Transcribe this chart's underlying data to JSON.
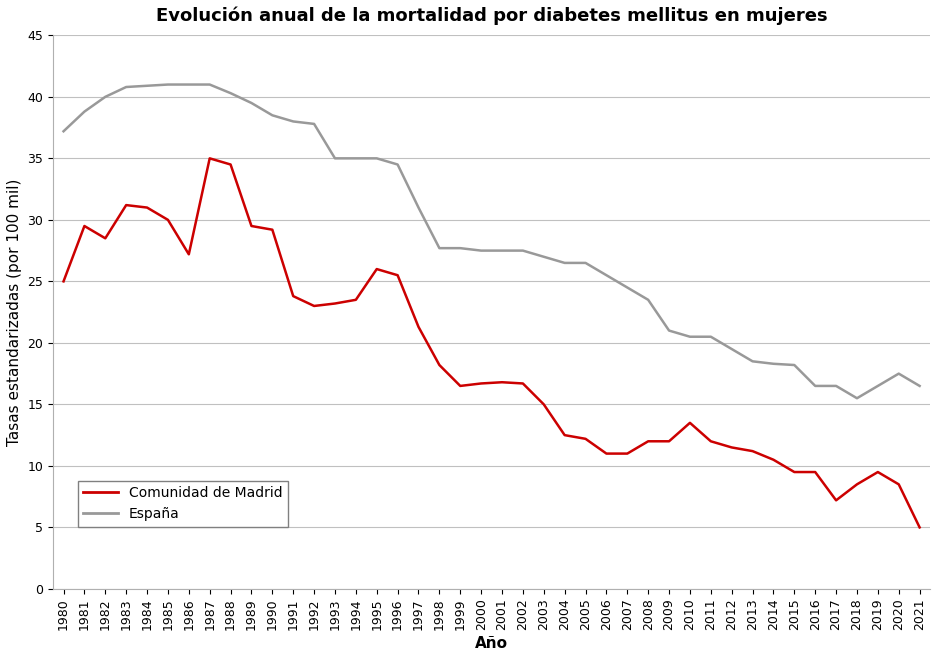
{
  "title": "Evolución anual de la mortalidad por diabetes mellitus en mujeres",
  "xlabel": "Año",
  "ylabel": "Tasas estandarizadas (por 100 mil)",
  "years": [
    1980,
    1981,
    1982,
    1983,
    1984,
    1985,
    1986,
    1987,
    1988,
    1989,
    1990,
    1991,
    1992,
    1993,
    1994,
    1995,
    1996,
    1997,
    1998,
    1999,
    2000,
    2001,
    2002,
    2003,
    2004,
    2005,
    2006,
    2007,
    2008,
    2009,
    2010,
    2011,
    2012,
    2013,
    2014,
    2015,
    2016,
    2017,
    2018,
    2019,
    2020,
    2021
  ],
  "madrid": [
    25.0,
    29.5,
    28.5,
    31.2,
    31.0,
    30.0,
    27.2,
    35.0,
    34.5,
    29.5,
    29.2,
    23.8,
    23.0,
    23.2,
    23.5,
    26.0,
    25.5,
    21.3,
    18.2,
    16.5,
    16.7,
    16.8,
    16.7,
    15.0,
    12.5,
    12.2,
    11.0,
    11.0,
    12.0,
    12.0,
    13.5,
    12.0,
    11.5,
    11.2,
    10.5,
    9.5,
    9.5,
    7.2,
    8.5,
    9.5,
    8.5,
    5.0
  ],
  "espana": [
    37.2,
    38.8,
    40.0,
    40.8,
    40.9,
    41.0,
    41.0,
    41.0,
    40.3,
    39.5,
    38.5,
    38.0,
    37.8,
    35.0,
    35.0,
    35.0,
    34.5,
    31.0,
    27.7,
    27.7,
    27.5,
    27.5,
    27.5,
    27.0,
    26.5,
    26.5,
    25.5,
    24.5,
    23.5,
    21.0,
    20.5,
    20.5,
    19.5,
    18.5,
    18.3,
    18.2,
    16.5,
    16.5,
    15.5,
    16.5,
    17.5,
    16.5
  ],
  "madrid_color": "#cc0000",
  "espana_color": "#999999",
  "ylim": [
    0,
    45
  ],
  "yticks": [
    0,
    5,
    10,
    15,
    20,
    25,
    30,
    35,
    40,
    45
  ],
  "background_color": "#ffffff",
  "grid_color": "#c0c0c0",
  "legend_madrid": "Comunidad de Madrid",
  "legend_espana": "España",
  "title_fontsize": 13,
  "label_fontsize": 11,
  "tick_fontsize": 9,
  "legend_fontsize": 10,
  "line_width": 1.8
}
